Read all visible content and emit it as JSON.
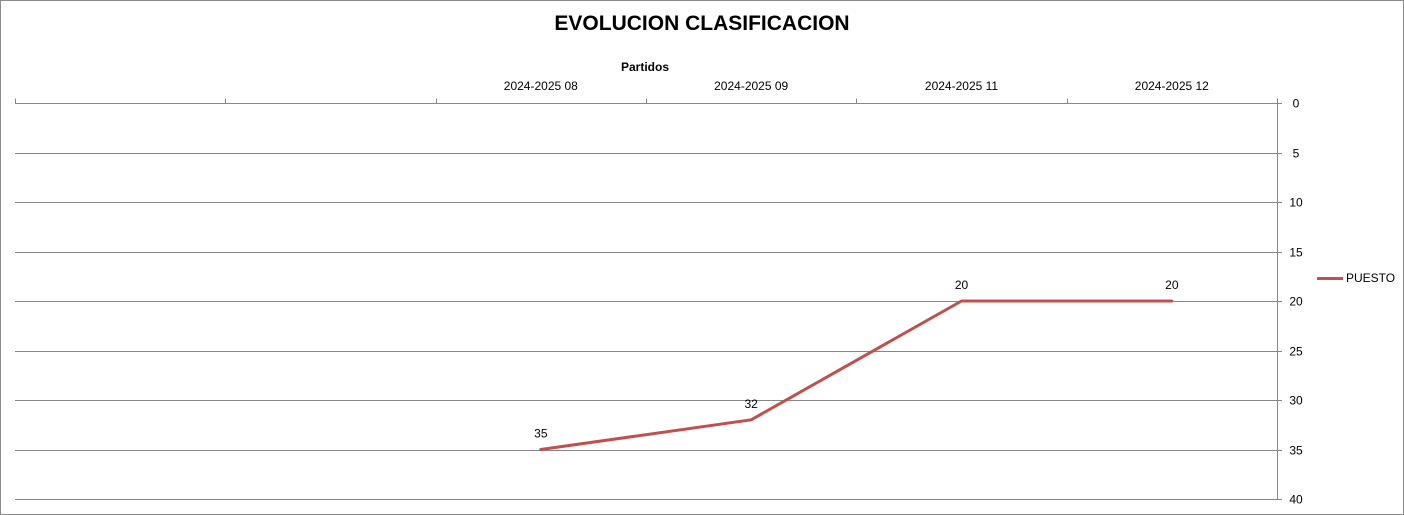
{
  "chart_data": {
    "type": "line",
    "title": "EVOLUCION CLASIFICACION",
    "xlabel": "Partidos",
    "ylabel": "",
    "categories": [
      "",
      "",
      "2024-2025 08",
      "2024-2025 09",
      "2024-2025 11",
      "2024-2025 12"
    ],
    "series": [
      {
        "name": "PUESTO",
        "values": [
          null,
          null,
          35,
          32,
          20,
          20
        ],
        "color": "#C0504D",
        "data_labels": true
      }
    ],
    "ylim": [
      0,
      40
    ],
    "y_reversed": true,
    "y_ticks": [
      0,
      5,
      10,
      15,
      20,
      25,
      30,
      35,
      40
    ],
    "x_axis_position": "top",
    "y_axis_position": "right",
    "grid": "horizontal",
    "legend": "right"
  }
}
